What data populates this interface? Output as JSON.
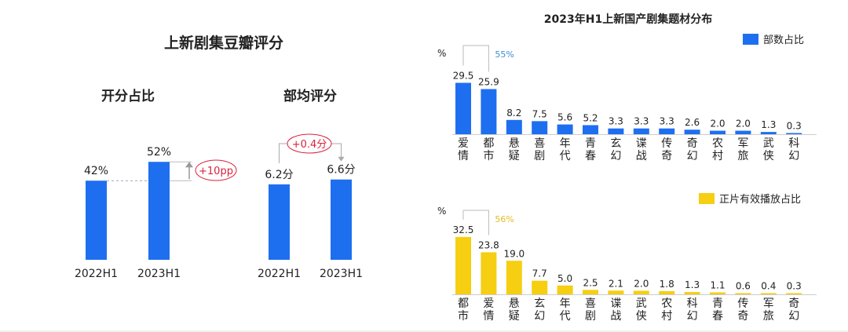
{
  "colors": {
    "blue": "#1e6ff0",
    "yellow": "#f6ce12",
    "annotation_red": "#d9213c",
    "blue_text": "#3d8fd4",
    "yellow_text": "#e6bb24",
    "connector": "#999999"
  },
  "chart_data": [
    {
      "type": "bar",
      "title": "开分占比",
      "group_title": "上新剧集豆瓣评分",
      "categories": [
        "2022H1",
        "2023H1"
      ],
      "values": [
        42,
        52
      ],
      "value_labels": [
        "42%",
        "52%"
      ],
      "annotation": "+10pp",
      "ylim": [
        0,
        100
      ],
      "grid": false
    },
    {
      "type": "bar",
      "title": "部均评分",
      "categories": [
        "2022H1",
        "2023H1"
      ],
      "values": [
        6.2,
        6.6
      ],
      "value_labels": [
        "6.2分",
        "6.6分"
      ],
      "annotation": "+0.4分",
      "ylim": [
        0,
        10
      ],
      "grid": false
    },
    {
      "type": "bar",
      "title": "2023年H1上新国产剧集题材分布",
      "legend": "部数占比",
      "legend_position": "top-right",
      "unit": "%",
      "categories": [
        "爱情",
        "都市",
        "悬疑",
        "喜剧",
        "年代",
        "青春",
        "玄幻",
        "谍战",
        "传奇",
        "奇幻",
        "农村",
        "军旅",
        "武侠",
        "科幻"
      ],
      "values": [
        29.5,
        25.9,
        8.2,
        7.5,
        5.6,
        5.2,
        3.3,
        3.3,
        3.3,
        2.6,
        2.0,
        2.0,
        1.3,
        0.3
      ],
      "value_labels": [
        "29.5",
        "25.9",
        "8.2",
        "7.5",
        "5.6",
        "5.2",
        "3.3",
        "3.3",
        "3.3",
        "2.6",
        "2.0",
        "2.0",
        "1.3",
        "0.3"
      ],
      "annotation": "55%",
      "ylim": [
        0,
        35
      ],
      "grid": false
    },
    {
      "type": "bar",
      "legend": "正片有效播放占比",
      "legend_position": "top-right",
      "unit": "%",
      "categories": [
        "都市",
        "爱情",
        "悬疑",
        "玄幻",
        "年代",
        "喜剧",
        "谍战",
        "武侠",
        "农村",
        "科幻",
        "青春",
        "传奇",
        "军旅",
        "奇幻"
      ],
      "values": [
        32.5,
        23.8,
        19.0,
        7.7,
        5.0,
        2.5,
        2.1,
        2.0,
        1.8,
        1.3,
        1.1,
        0.6,
        0.4,
        0.3
      ],
      "value_labels": [
        "32.5",
        "23.8",
        "19.0",
        "7.7",
        "5.0",
        "2.5",
        "2.1",
        "2.0",
        "1.8",
        "1.3",
        "1.1",
        "0.6",
        "0.4",
        "0.3"
      ],
      "annotation": "56%",
      "ylim": [
        0,
        35
      ],
      "grid": false
    }
  ]
}
